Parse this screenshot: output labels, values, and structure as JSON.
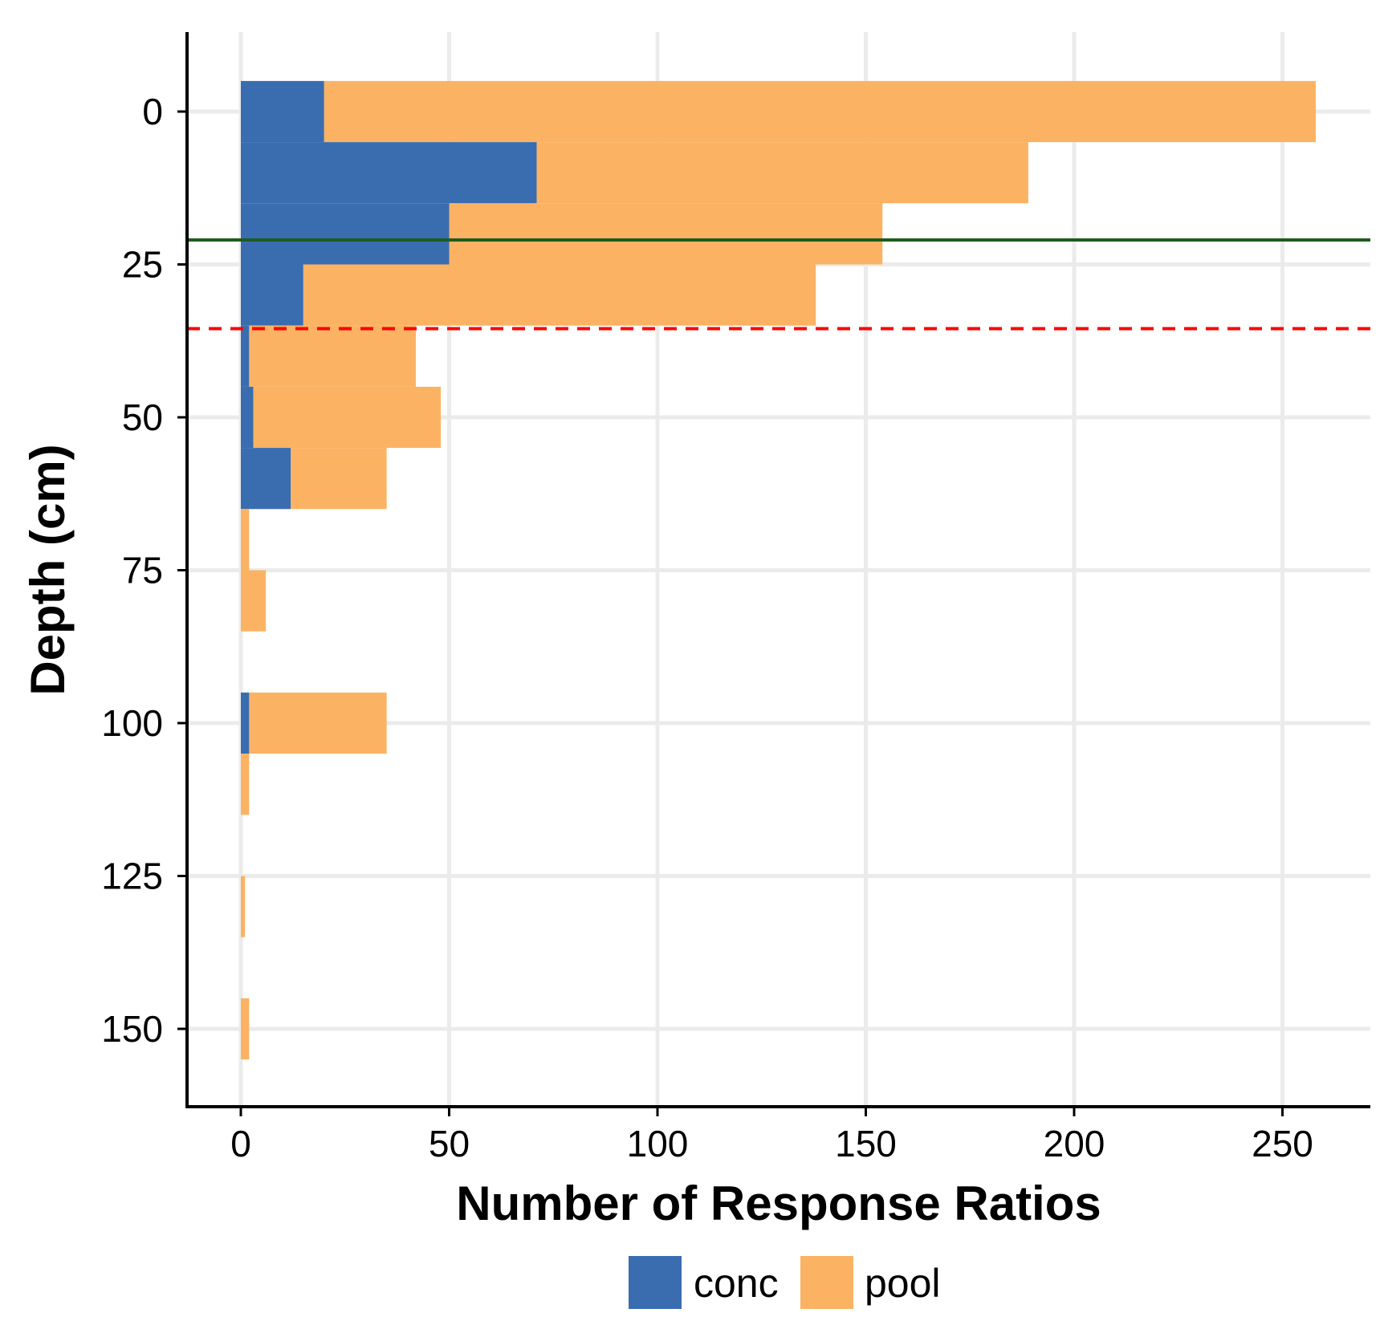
{
  "chart_data": {
    "type": "bar",
    "orientation": "horizontal",
    "stacked": true,
    "title": "",
    "xlabel": "Number of Response Ratios",
    "ylabel": "Depth (cm)",
    "xlim": [
      -13,
      270
    ],
    "ylim": [
      -12.5,
      162
    ],
    "xticks": [
      0,
      50,
      100,
      150,
      200,
      250
    ],
    "yticks": [
      0,
      25,
      50,
      75,
      100,
      125,
      150
    ],
    "grid": true,
    "legend_position": "bottom",
    "bin_width": 10,
    "bins": [
      0,
      10,
      20,
      30,
      40,
      50,
      60,
      70,
      80,
      90,
      100,
      110,
      120,
      130,
      140,
      150
    ],
    "series": [
      {
        "name": "conc",
        "color": "#3A6DB0",
        "values": [
          20,
          71,
          50,
          15,
          2,
          3,
          12,
          0,
          0,
          0,
          2,
          0,
          0,
          0,
          0,
          0
        ]
      },
      {
        "name": "pool",
        "color": "#FBB363",
        "values": [
          238,
          118,
          104,
          123,
          40,
          45,
          23,
          2,
          6,
          0,
          33,
          2,
          0,
          1,
          0,
          2
        ]
      }
    ],
    "reference_lines": [
      {
        "name": "solid-line",
        "axis": "y",
        "value": 21,
        "color": "#1E5C1E",
        "style": "solid"
      },
      {
        "name": "dashed-line",
        "axis": "y",
        "value": 35.5,
        "color": "#FF0000",
        "style": "dashed"
      }
    ]
  }
}
